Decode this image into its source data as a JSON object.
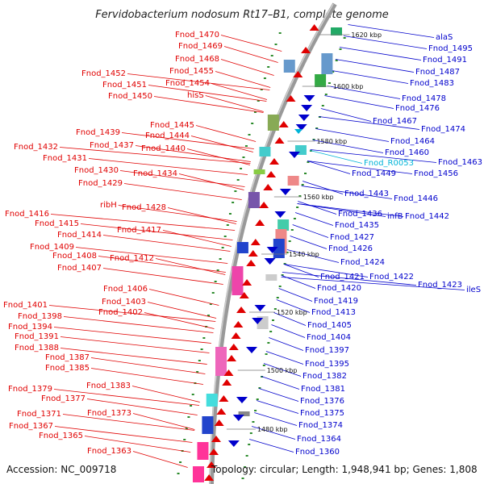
{
  "title": "Fervidobacterium nodosum Rt17–B1, complete genome",
  "footer": {
    "accession": "Accession: NC_009718",
    "topology": "Topology: circular; Length: 1,948,941 bp; Genes: 1,808"
  },
  "colors": {
    "left_strand": "#e00000",
    "right_strand": "#0000cc",
    "rna": "#00b4d8",
    "backbone": "#999999",
    "tick": "#2a8a2a"
  },
  "scale_labels": [
    "1620 kbp",
    "1600 kbp",
    "1580 kbp",
    "1560 kbp",
    "1540 kbp",
    "1520 kbp",
    "1500 kbp",
    "1480 kbp"
  ],
  "labels_left": [
    "Fnod_1470",
    "Fnod_1469",
    "Fnod_1468",
    "Fnod_1452",
    "Fnod_1455",
    "Fnod_1451",
    "Fnod_1454",
    "Fnod_1450",
    "hisS",
    "Fnod_1445",
    "Fnod_1444",
    "Fnod_1439",
    "Fnod_1437",
    "Fnod_1440",
    "Fnod_1432",
    "Fnod_1431",
    "Fnod_1430",
    "Fnod_1434",
    "Fnod_1429",
    "ribH",
    "Fnod_1428",
    "Fnod_1416",
    "Fnod_1415",
    "Fnod_1417",
    "Fnod_1414",
    "Fnod_1409",
    "Fnod_1408",
    "Fnod_1412",
    "Fnod_1407",
    "Fnod_1406",
    "Fnod_1401",
    "Fnod_1403",
    "Fnod_1398",
    "Fnod_1402",
    "Fnod_1394",
    "Fnod_1391",
    "Fnod_1388",
    "Fnod_1387",
    "Fnod_1385",
    "Fnod_1383",
    "Fnod_1379",
    "Fnod_1377",
    "Fnod_1371",
    "Fnod_1373",
    "Fnod_1367",
    "Fnod_1365",
    "Fnod_1363"
  ],
  "labels_right": [
    "alaS",
    "Fnod_1495",
    "Fnod_1491",
    "Fnod_1487",
    "Fnod_1483",
    "Fnod_1478",
    "Fnod_1476",
    "Fnod_1467",
    "Fnod_1474",
    "Fnod_1464",
    "Fnod_1460",
    "Fnod_1463",
    "Fnod_R0053",
    "Fnod_1456",
    "Fnod_1449",
    "Fnod_1443",
    "Fnod_1446",
    "Fnod_1436",
    "infB",
    "Fnod_1442",
    "Fnod_1435",
    "Fnod_1427",
    "Fnod_1426",
    "Fnod_1424",
    "Fnod_1421",
    "Fnod_1422",
    "Fnod_1423",
    "Fnod_1420",
    "ileS",
    "Fnod_1419",
    "Fnod_1413",
    "Fnod_1405",
    "Fnod_1404",
    "Fnod_1397",
    "Fnod_1395",
    "Fnod_1382",
    "Fnod_1381",
    "Fnod_1376",
    "Fnod_1375",
    "Fnod_1374",
    "Fnod_1364",
    "Fnod_1360"
  ]
}
